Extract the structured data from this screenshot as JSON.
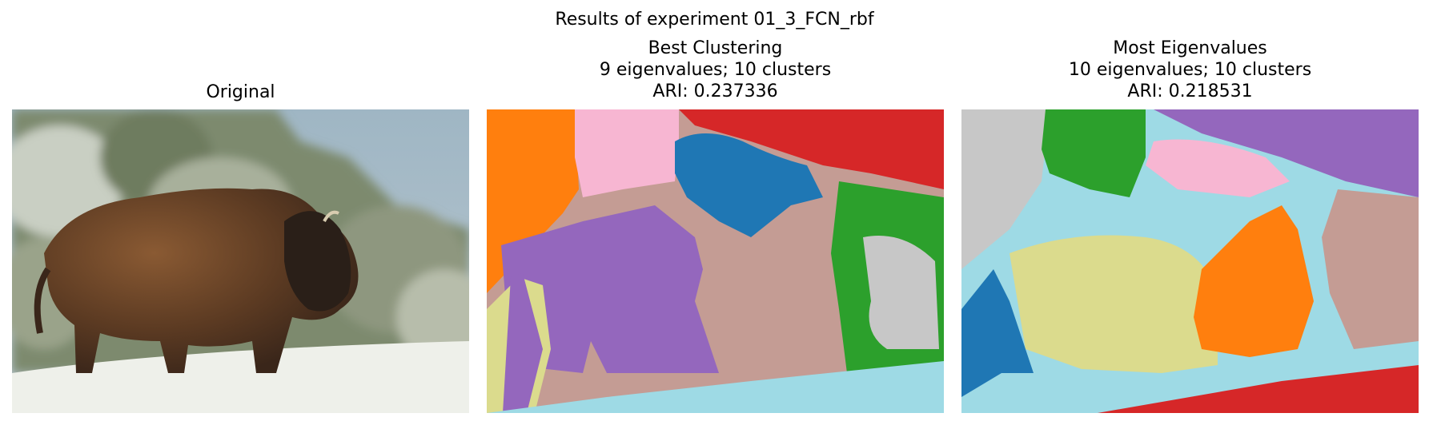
{
  "figure": {
    "suptitle": "Results of experiment 01_3_FCN_rbf"
  },
  "panels": [
    {
      "title_lines": [
        "Original"
      ]
    },
    {
      "title_lines": [
        "Best Clustering",
        "9 eigenvalues; 10 clusters",
        "ARI: 0.237336"
      ]
    },
    {
      "title_lines": [
        "Most Eigenvalues",
        "10 eigenvalues; 10 clusters",
        "ARI: 0.218531"
      ]
    }
  ],
  "palette": {
    "blue": "#1f77b4",
    "orange": "#ff7f0e",
    "green": "#2ca02c",
    "red": "#d62728",
    "purple": "#9467bd",
    "brown": "#c49c94",
    "pink": "#f7b6d2",
    "gray": "#c7c7c7",
    "olive": "#dbdb8d",
    "cyan": "#9edae5"
  }
}
